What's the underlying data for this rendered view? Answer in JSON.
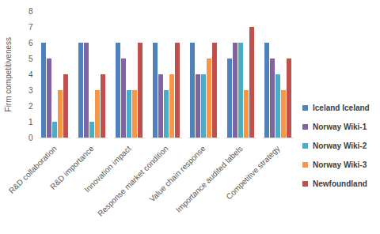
{
  "chart_data": {
    "type": "bar",
    "categories": [
      "R&D collaboration",
      "R&D importance",
      "Innovation impact",
      "Response market condition",
      "Value chain response",
      "Importance audited labels",
      "Competitive strategy"
    ],
    "series": [
      {
        "name": "Iceland Iceland",
        "color": "#4f81bd",
        "values": [
          6,
          6,
          6,
          6,
          6,
          5,
          6
        ]
      },
      {
        "name": "Norway Wiki-1",
        "color": "#8064a2",
        "values": [
          5,
          6,
          5,
          4,
          4,
          6,
          5
        ]
      },
      {
        "name": "Norway Wiki-2",
        "color": "#4bacc6",
        "values": [
          1,
          1,
          3,
          3,
          4,
          6,
          4
        ]
      },
      {
        "name": "Norway Wiki-3",
        "color": "#f79646",
        "values": [
          3,
          3,
          3,
          4,
          5,
          3,
          3
        ]
      },
      {
        "name": "Newfoundland",
        "color": "#c0504d",
        "values": [
          4,
          4,
          6,
          6,
          6,
          7,
          5
        ]
      }
    ],
    "y_label": "Firm competitiveness",
    "ylim": [
      0,
      8
    ],
    "yticks": [
      0,
      1,
      2,
      3,
      4,
      5,
      6,
      7,
      8
    ],
    "grid": false,
    "legend": "right"
  }
}
